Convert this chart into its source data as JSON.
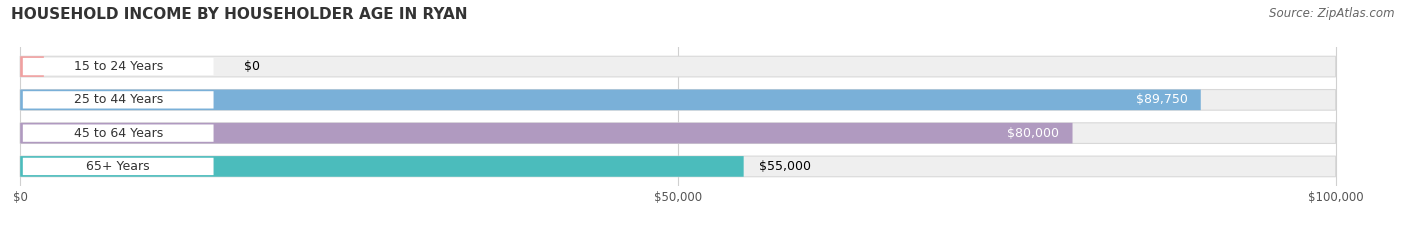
{
  "title": "HOUSEHOLD INCOME BY HOUSEHOLDER AGE IN RYAN",
  "source": "Source: ZipAtlas.com",
  "categories": [
    "15 to 24 Years",
    "25 to 44 Years",
    "45 to 64 Years",
    "65+ Years"
  ],
  "values": [
    0,
    89750,
    80000,
    55000
  ],
  "bar_colors": [
    "#f0a0a0",
    "#7ab0d8",
    "#b09ac0",
    "#4bbcbc"
  ],
  "bar_bg_color": "#efefef",
  "bar_bg_edge_color": "#d8d8d8",
  "xlim": [
    0,
    100000
  ],
  "xticks": [
    0,
    50000,
    100000
  ],
  "xtick_labels": [
    "$0",
    "$50,000",
    "$100,000"
  ],
  "value_labels": [
    "$0",
    "$89,750",
    "$80,000",
    "$55,000"
  ],
  "value_label_inside": [
    false,
    true,
    true,
    false
  ],
  "value_label_colors_inside": [
    "#000000",
    "#ffffff",
    "#ffffff",
    "#000000"
  ],
  "background_color": "#ffffff",
  "title_fontsize": 11,
  "source_fontsize": 8.5,
  "label_fontsize": 9,
  "tick_fontsize": 8.5,
  "bar_height": 0.62,
  "label_pill_color": "#ffffff",
  "grid_color": "#d0d0d0"
}
